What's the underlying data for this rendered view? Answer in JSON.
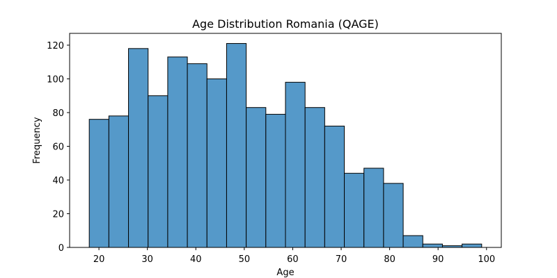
{
  "chart_data": {
    "type": "bar",
    "title": "Age Distribution Romania (QAGE)",
    "xlabel": "Age",
    "ylabel": "Frequency",
    "bin_edges": [
      18,
      22.05,
      26.1,
      30.15,
      34.2,
      38.25,
      42.3,
      46.35,
      50.4,
      54.45,
      58.5,
      62.55,
      66.6,
      70.65,
      74.7,
      78.75,
      82.8,
      86.85,
      90.9,
      94.95,
      99
    ],
    "values": [
      76,
      78,
      118,
      90,
      113,
      109,
      100,
      121,
      83,
      79,
      98,
      83,
      72,
      44,
      47,
      38,
      7,
      2,
      1,
      2
    ],
    "xlim": [
      13.95,
      103.05
    ],
    "ylim": [
      0,
      127
    ],
    "xticks": [
      20,
      30,
      40,
      50,
      60,
      70,
      80,
      90,
      100
    ],
    "yticks": [
      0,
      20,
      40,
      60,
      80,
      100,
      120
    ],
    "bar_color": "#5599c9",
    "edge_color": "#000000",
    "grid": false
  }
}
